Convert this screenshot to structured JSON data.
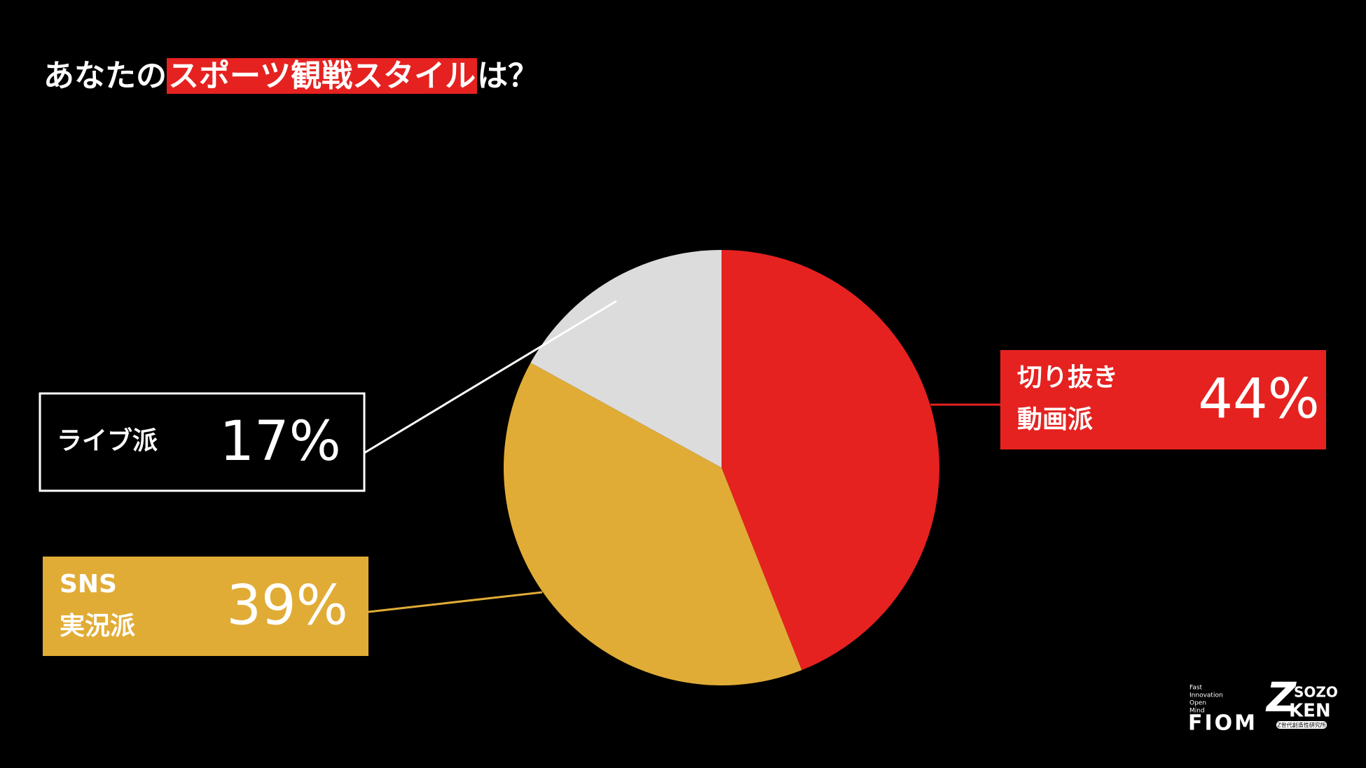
{
  "chart_data": {
    "type": "pie",
    "title": [
      "あなたの",
      "スポーツ観戦スタイル",
      "は？"
    ],
    "categories": [
      [
        "切り抜き",
        "動画派"
      ],
      [
        "SNS",
        "実況派"
      ],
      [
        "ライブ派"
      ]
    ],
    "values": [
      44,
      39,
      17
    ],
    "value_labels": [
      "44%",
      "39%",
      "17%"
    ],
    "colors": [
      "#e52220",
      "#e1ac36",
      "#dcdcdc"
    ],
    "start_angle": 0,
    "direction": "clockwise"
  },
  "logos": {
    "fiom_tagline": [
      "Fast",
      "Innovation",
      "Open",
      "Mind"
    ],
    "fiom": "FIOM",
    "sozo": "SOZO",
    "ken": "KEN",
    "z": "Z",
    "ken_sub": "Z世代創造性研究所"
  }
}
